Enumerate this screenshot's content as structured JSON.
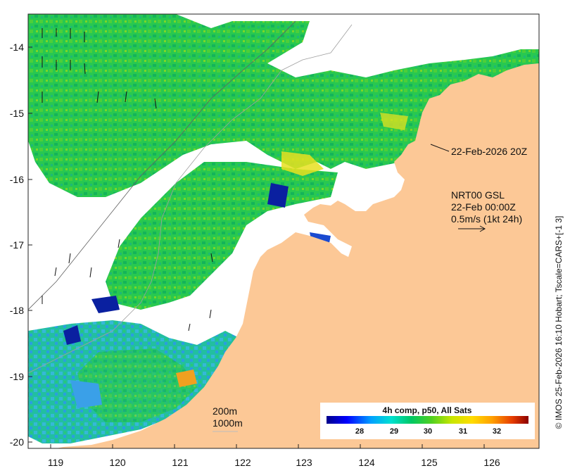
{
  "map": {
    "lon_ticks": [
      "119",
      "120",
      "121",
      "122",
      "123",
      "124",
      "125",
      "126"
    ],
    "lat_ticks": [
      "-14",
      "-15",
      "-16",
      "-17",
      "-18",
      "-19",
      "-20"
    ],
    "land_color": "#fcc896",
    "ocean_color": "#ffffff"
  },
  "annotations": {
    "time_label": "22-Feb-2026 20Z",
    "current_title": "NRT00 GSL",
    "current_date": "22-Feb 00:00Z",
    "current_scale": "0.5m/s (1kt 24h)",
    "depth_200": "200m",
    "depth_1000": "1000m"
  },
  "colorbar": {
    "title": "4h comp, p50, All Sats",
    "ticks": [
      "28",
      "29",
      "30",
      "31",
      "32"
    ],
    "colors": [
      "#00008b",
      "#0000ff",
      "#0080ff",
      "#00c0ff",
      "#00e0c0",
      "#00c864",
      "#32c832",
      "#96dc00",
      "#f0f000",
      "#ffc800",
      "#ff8c00",
      "#dc3c00",
      "#8b0000"
    ]
  },
  "credit": "© IMOS 25-Feb-2026 16:10 Hobart; Tscale=CARS+[-1 3]"
}
